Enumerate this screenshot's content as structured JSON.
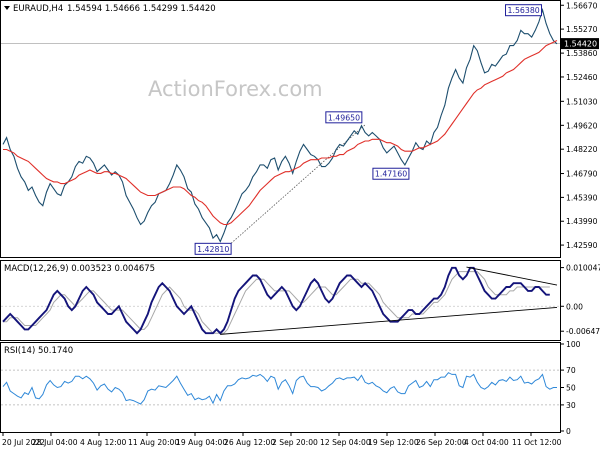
{
  "chart_data": [
    {
      "type": "line",
      "panel": "price",
      "title": "EURAUD,H4",
      "ohlc_label": "1.54594 1.54666 1.54299 1.54420",
      "watermark": "ActionForex.com",
      "ylim": [
        1.4189,
        1.5692
      ],
      "yticks": [
        "1.56670",
        "1.55270",
        "1.53860",
        "1.52460",
        "1.51030",
        "1.49620",
        "1.48220",
        "1.46790",
        "1.45390",
        "1.43990",
        "1.42590"
      ],
      "ytick_values": [
        1.5667,
        1.5527,
        1.5386,
        1.5246,
        1.5103,
        1.4962,
        1.4822,
        1.4679,
        1.4539,
        1.4399,
        1.4259
      ],
      "current_price": 1.5442,
      "current_price_label": "1.54420",
      "xlabels": [
        "20 Jul 2022",
        "28 Jul 04:00",
        "4 Aug 12:00",
        "11 Aug 20:00",
        "19 Aug 04:00",
        "26 Aug 12:00",
        "2 Sep 20:00",
        "12 Sep 04:00",
        "19 Sep 12:00",
        "26 Sep 20:00",
        "4 Oct 04:00",
        "11 Oct 12:00"
      ],
      "annotations": [
        {
          "label": "1.56380",
          "x": 149,
          "y": 1.5638
        },
        {
          "label": "1.49650",
          "x": 98,
          "y": 1.4965
        },
        {
          "label": "1.47160",
          "x": 111,
          "y": 1.4716
        },
        {
          "label": "1.42810",
          "x": 63,
          "y": 1.4281
        }
      ],
      "series": [
        {
          "values": [
            1.485,
            1.489,
            1.482,
            1.478,
            1.471,
            1.466,
            1.463,
            1.458,
            1.46,
            1.455,
            1.451,
            1.449,
            1.457,
            1.462,
            1.459,
            1.456,
            1.455,
            1.461,
            1.463,
            1.466,
            1.472,
            1.475,
            1.474,
            1.478,
            1.477,
            1.474,
            1.469,
            1.471,
            1.473,
            1.47,
            1.467,
            1.469,
            1.467,
            1.463,
            1.455,
            1.451,
            1.447,
            1.442,
            1.438,
            1.44,
            1.445,
            1.449,
            1.451,
            1.456,
            1.457,
            1.458,
            1.462,
            1.467,
            1.473,
            1.47,
            1.466,
            1.459,
            1.457,
            1.45,
            1.447,
            1.442,
            1.439,
            1.436,
            1.43,
            1.432,
            1.428,
            1.433,
            1.439,
            1.442,
            1.446,
            1.451,
            1.456,
            1.458,
            1.461,
            1.466,
            1.469,
            1.473,
            1.473,
            1.471,
            1.476,
            1.477,
            1.47,
            1.475,
            1.478,
            1.474,
            1.468,
            1.475,
            1.481,
            1.485,
            1.482,
            1.479,
            1.478,
            1.476,
            1.472,
            1.472,
            1.474,
            1.477,
            1.482,
            1.485,
            1.484,
            1.487,
            1.49,
            1.493,
            1.491,
            1.496,
            1.492,
            1.49,
            1.492,
            1.49,
            1.488,
            1.483,
            1.48,
            1.482,
            1.484,
            1.48,
            1.476,
            1.473,
            1.477,
            1.481,
            1.486,
            1.483,
            1.482,
            1.487,
            1.485,
            1.492,
            1.495,
            1.502,
            1.508,
            1.518,
            1.524,
            1.529,
            1.524,
            1.521,
            1.53,
            1.535,
            1.543,
            1.54,
            1.533,
            1.527,
            1.528,
            1.532,
            1.531,
            1.534,
            1.537,
            1.538,
            1.543,
            1.543,
            1.546,
            1.552,
            1.55,
            1.55,
            1.548,
            1.552,
            1.557,
            1.564,
            1.556,
            1.55,
            1.546,
            1.544
          ]
        },
        {
          "values": [
            1.482,
            1.482,
            1.481,
            1.48,
            1.478,
            1.477,
            1.476,
            1.475,
            1.473,
            1.471,
            1.469,
            1.467,
            1.465,
            1.464,
            1.463,
            1.463,
            1.462,
            1.462,
            1.463,
            1.464,
            1.465,
            1.467,
            1.468,
            1.469,
            1.47,
            1.469,
            1.468,
            1.468,
            1.469,
            1.469,
            1.468,
            1.468,
            1.467,
            1.466,
            1.465,
            1.463,
            1.461,
            1.459,
            1.457,
            1.456,
            1.455,
            1.455,
            1.455,
            1.456,
            1.457,
            1.458,
            1.459,
            1.46,
            1.46,
            1.46,
            1.459,
            1.457,
            1.455,
            1.454,
            1.452,
            1.451,
            1.449,
            1.446,
            1.443,
            1.441,
            1.439,
            1.438,
            1.438,
            1.439,
            1.441,
            1.443,
            1.445,
            1.447,
            1.449,
            1.452,
            1.455,
            1.458,
            1.46,
            1.462,
            1.464,
            1.466,
            1.467,
            1.468,
            1.469,
            1.469,
            1.47,
            1.471,
            1.472,
            1.474,
            1.475,
            1.476,
            1.476,
            1.476,
            1.477,
            1.477,
            1.477,
            1.478,
            1.478,
            1.479,
            1.479,
            1.481,
            1.482,
            1.483,
            1.485,
            1.486,
            1.487,
            1.487,
            1.488,
            1.488,
            1.488,
            1.487,
            1.486,
            1.486,
            1.485,
            1.484,
            1.482,
            1.481,
            1.481,
            1.481,
            1.482,
            1.483,
            1.483,
            1.484,
            1.485,
            1.486,
            1.487,
            1.489,
            1.491,
            1.494,
            1.497,
            1.5,
            1.503,
            1.506,
            1.509,
            1.512,
            1.515,
            1.517,
            1.518,
            1.52,
            1.521,
            1.522,
            1.523,
            1.524,
            1.525,
            1.527,
            1.528,
            1.529,
            1.531,
            1.533,
            1.535,
            1.536,
            1.537,
            1.538,
            1.539,
            1.541,
            1.543,
            1.544,
            1.545,
            1.546
          ]
        }
      ]
    },
    {
      "type": "line",
      "panel": "macd",
      "title": "MACD(12,26,9) 0.003523 0.004675",
      "ylim": [
        -0.0085,
        0.0115
      ],
      "yticks": [
        "0.010047",
        "0.00",
        "-0.006476"
      ],
      "ytick_values": [
        0.010047,
        0,
        -0.006476
      ],
      "series": [
        {
          "values": [
            -0.004,
            -0.003,
            -0.002,
            -0.003,
            -0.004,
            -0.005,
            -0.006,
            -0.006,
            -0.005,
            -0.004,
            -0.003,
            -0.002,
            -0.001,
            0.001,
            0.003,
            0.004,
            0.003,
            0.002,
            0.0,
            -0.001,
            0.0,
            0.002,
            0.004,
            0.005,
            0.004,
            0.003,
            0.001,
            0.0,
            -0.001,
            -0.002,
            -0.002,
            -0.001,
            0.0,
            -0.002,
            -0.004,
            -0.005,
            -0.006,
            -0.007,
            -0.006,
            -0.004,
            -0.002,
            0.001,
            0.003,
            0.005,
            0.006,
            0.005,
            0.004,
            0.002,
            0.0,
            -0.001,
            -0.002,
            -0.001,
            0.0,
            -0.002,
            -0.004,
            -0.006,
            -0.007,
            -0.007,
            -0.007,
            -0.006,
            -0.007,
            -0.006,
            -0.004,
            -0.001,
            0.002,
            0.004,
            0.005,
            0.006,
            0.007,
            0.008,
            0.008,
            0.007,
            0.005,
            0.003,
            0.002,
            0.003,
            0.004,
            0.005,
            0.004,
            0.002,
            0.0,
            -0.001,
            0.0,
            0.002,
            0.004,
            0.006,
            0.007,
            0.006,
            0.004,
            0.002,
            0.001,
            0.002,
            0.004,
            0.006,
            0.007,
            0.008,
            0.008,
            0.007,
            0.006,
            0.005,
            0.006,
            0.005,
            0.004,
            0.002,
            0.0,
            -0.002,
            -0.003,
            -0.004,
            -0.004,
            -0.004,
            -0.003,
            -0.002,
            -0.001,
            -0.001,
            -0.002,
            -0.002,
            -0.001,
            0.0,
            0.001,
            0.002,
            0.002,
            0.003,
            0.005,
            0.008,
            0.01,
            0.01,
            0.008,
            0.007,
            0.008,
            0.01,
            0.01,
            0.008,
            0.006,
            0.004,
            0.003,
            0.002,
            0.002,
            0.003,
            0.004,
            0.005,
            0.005,
            0.006,
            0.006,
            0.006,
            0.005,
            0.004,
            0.004,
            0.005,
            0.005,
            0.004,
            0.003,
            0.003
          ]
        },
        {
          "values": [
            -0.004,
            -0.004,
            -0.003,
            -0.003,
            -0.003,
            -0.004,
            -0.005,
            -0.005,
            -0.005,
            -0.005,
            -0.004,
            -0.003,
            -0.002,
            -0.001,
            0.001,
            0.002,
            0.003,
            0.003,
            0.002,
            0.001,
            0.0,
            0.001,
            0.002,
            0.003,
            0.004,
            0.004,
            0.003,
            0.002,
            0.001,
            0.0,
            -0.001,
            -0.001,
            -0.001,
            -0.001,
            -0.002,
            -0.003,
            -0.004,
            -0.005,
            -0.006,
            -0.006,
            -0.005,
            -0.003,
            -0.001,
            0.001,
            0.003,
            0.004,
            0.005,
            0.004,
            0.003,
            0.002,
            0.0,
            -0.001,
            -0.001,
            -0.001,
            -0.002,
            -0.004,
            -0.005,
            -0.006,
            -0.007,
            -0.007,
            -0.007,
            -0.007,
            -0.006,
            -0.004,
            -0.002,
            0.0,
            0.002,
            0.004,
            0.005,
            0.006,
            0.007,
            0.007,
            0.007,
            0.006,
            0.005,
            0.004,
            0.004,
            0.004,
            0.004,
            0.004,
            0.003,
            0.002,
            0.001,
            0.001,
            0.002,
            0.003,
            0.004,
            0.005,
            0.005,
            0.005,
            0.004,
            0.003,
            0.003,
            0.004,
            0.005,
            0.006,
            0.007,
            0.007,
            0.007,
            0.006,
            0.006,
            0.006,
            0.005,
            0.004,
            0.003,
            0.001,
            0.0,
            -0.001,
            -0.002,
            -0.003,
            -0.003,
            -0.003,
            -0.003,
            -0.002,
            -0.002,
            -0.002,
            -0.002,
            -0.001,
            0.0,
            0.001,
            0.001,
            0.002,
            0.003,
            0.005,
            0.007,
            0.008,
            0.009,
            0.009,
            0.009,
            0.009,
            0.009,
            0.009,
            0.008,
            0.007,
            0.005,
            0.004,
            0.003,
            0.003,
            0.003,
            0.003,
            0.004,
            0.004,
            0.005,
            0.005,
            0.005,
            0.005,
            0.005,
            0.005,
            0.005,
            0.005,
            0.005,
            0.005
          ]
        }
      ]
    },
    {
      "type": "line",
      "panel": "rsi",
      "title": "RSI(14) 50.1740",
      "ylim": [
        0,
        100
      ],
      "yticks": [
        "100",
        "70",
        "50",
        "30",
        "0"
      ],
      "ytick_values": [
        100,
        70,
        50,
        30,
        0
      ],
      "series": [
        {
          "values": [
            51,
            56,
            46,
            43,
            40,
            38,
            44,
            42,
            50,
            38,
            37,
            42,
            53,
            58,
            53,
            50,
            51,
            57,
            55,
            57,
            63,
            63,
            60,
            63,
            60,
            55,
            47,
            52,
            54,
            48,
            45,
            50,
            48,
            44,
            35,
            36,
            35,
            33,
            31,
            36,
            46,
            48,
            47,
            52,
            51,
            50,
            54,
            58,
            63,
            55,
            48,
            41,
            43,
            36,
            38,
            36,
            37,
            40,
            32,
            42,
            35,
            46,
            52,
            52,
            54,
            59,
            61,
            60,
            61,
            64,
            63,
            65,
            62,
            57,
            63,
            61,
            48,
            56,
            59,
            52,
            43,
            58,
            62,
            63,
            55,
            51,
            51,
            50,
            46,
            48,
            52,
            55,
            60,
            61,
            59,
            61,
            61,
            62,
            58,
            64,
            56,
            54,
            56,
            52,
            50,
            46,
            44,
            49,
            51,
            45,
            43,
            43,
            52,
            55,
            58,
            50,
            52,
            57,
            51,
            59,
            59,
            62,
            62,
            67,
            65,
            65,
            52,
            50,
            63,
            62,
            65,
            56,
            50,
            48,
            51,
            56,
            53,
            58,
            59,
            57,
            62,
            58,
            59,
            63,
            55,
            56,
            54,
            58,
            60,
            65,
            51,
            48,
            50,
            50
          ]
        }
      ]
    }
  ]
}
